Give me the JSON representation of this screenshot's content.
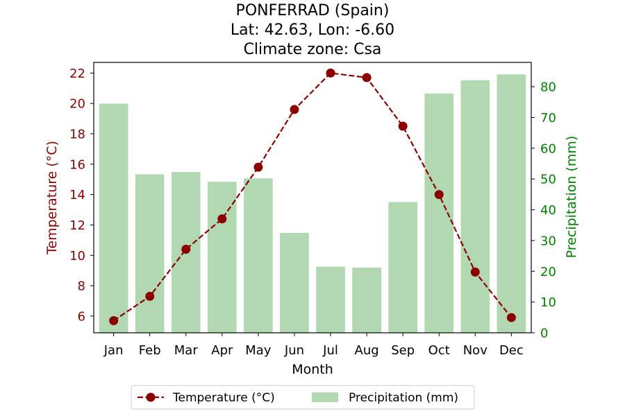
{
  "chart_data": {
    "type": "bar+line",
    "title_lines": [
      "PONFERRAD (Spain)",
      "Lat: 42.63, Lon: -6.60",
      "Climate zone: Csa"
    ],
    "xlabel": "Month",
    "ylabel_left": "Temperature (°C)",
    "ylabel_right": "Precipitation (mm)",
    "categories": [
      "Jan",
      "Feb",
      "Mar",
      "Apr",
      "May",
      "Jun",
      "Jul",
      "Aug",
      "Sep",
      "Oct",
      "Nov",
      "Dec"
    ],
    "ylim_left": [
      4.9,
      22.7
    ],
    "ylim_right": [
      0,
      87.9
    ],
    "yticks_left": [
      6,
      8,
      10,
      12,
      14,
      16,
      18,
      20,
      22
    ],
    "yticks_right": [
      0,
      10,
      20,
      30,
      40,
      50,
      60,
      70,
      80
    ],
    "grid": false,
    "legend_position": "bottom-center",
    "series": [
      {
        "name": "Temperature (°C)",
        "type": "line",
        "axis": "left",
        "color": "#8b0000",
        "style": "dashed-with-circle-markers",
        "values": [
          5.7,
          7.3,
          10.4,
          12.4,
          15.8,
          19.6,
          22.0,
          21.7,
          18.5,
          14.0,
          8.9,
          5.9
        ]
      },
      {
        "name": "Precipitation (mm)",
        "type": "bar",
        "axis": "right",
        "color": "#b2d8b2",
        "values": [
          74.5,
          51.5,
          52.3,
          49.1,
          50.2,
          32.5,
          21.5,
          21.2,
          42.5,
          77.8,
          82.1,
          84.0
        ]
      }
    ],
    "colors": {
      "left_axis": "#8b0000",
      "right_axis": "#008000"
    }
  }
}
